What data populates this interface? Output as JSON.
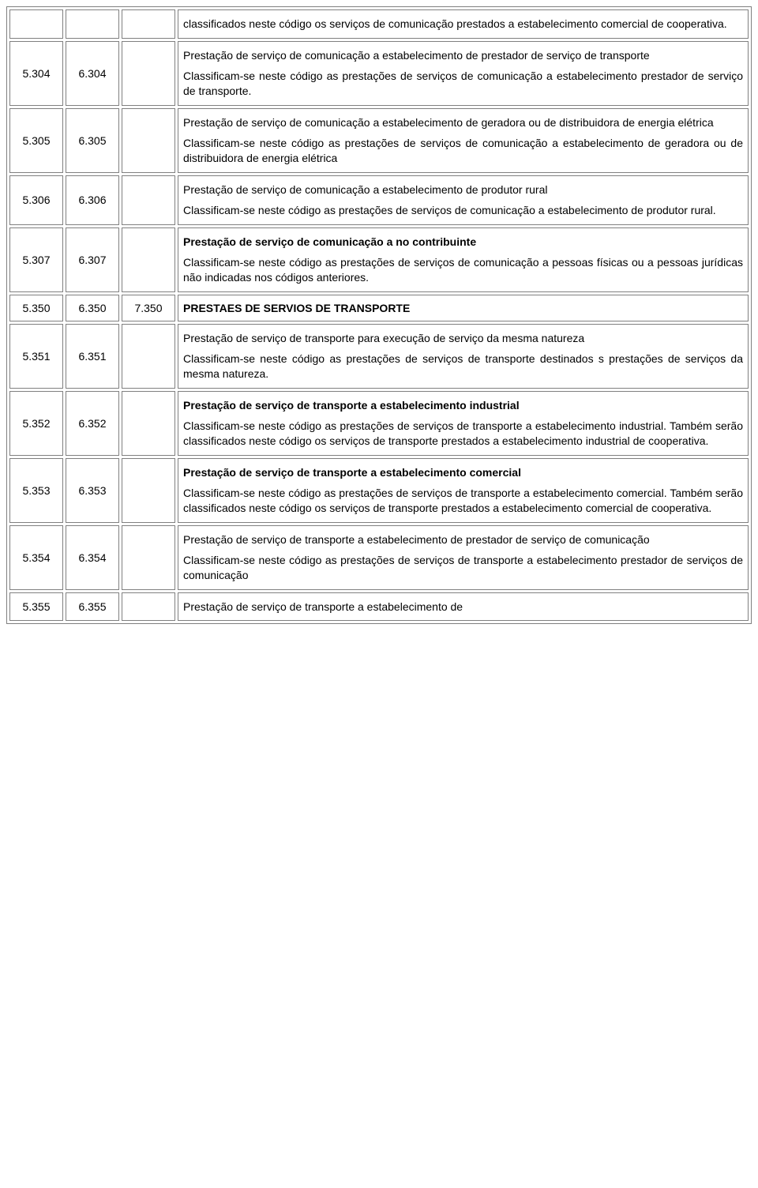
{
  "rows": [
    {
      "col1": "",
      "col2": "",
      "col3": "",
      "title": "",
      "titleBold": false,
      "body": "classificados neste código os serviços de comunicação prestados a estabelecimento comercial de cooperativa.",
      "bodyOnly": true
    },
    {
      "col1": "5.304",
      "col2": "6.304",
      "col3": "",
      "title": "Prestação de serviço de comunicação a estabelecimento de prestador de serviço de transporte",
      "titleBold": false,
      "body": "Classificam-se neste código as prestações de serviços de comunicação a estabelecimento prestador de serviço de transporte."
    },
    {
      "col1": "5.305",
      "col2": "6.305",
      "col3": "",
      "title": "Prestação de serviço de comunicação a estabelecimento de geradora ou de distribuidora de energia elétrica",
      "titleBold": false,
      "body": "Classificam-se neste código as prestações de serviços de comunicação a estabelecimento de geradora ou de distribuidora de energia elétrica"
    },
    {
      "col1": "5.306",
      "col2": "6.306",
      "col3": "",
      "title": "Prestação de serviço de comunicação a estabelecimento de produtor rural",
      "titleBold": false,
      "body": "Classificam-se neste código as prestações de serviços de comunicação a estabelecimento de produtor rural."
    },
    {
      "col1": "5.307",
      "col2": "6.307",
      "col3": "",
      "title": "Prestação de serviço de comunicação a no contribuinte",
      "titleBold": true,
      "body": "Classificam-se neste código as prestações de serviços de comunicação a pessoas físicas ou a pessoas jurídicas não indicadas nos códigos anteriores."
    },
    {
      "col1": "5.350",
      "col2": "6.350",
      "col3": "7.350",
      "title": "PRESTAES DE SERVIOS DE TRANSPORTE",
      "titleBold": true,
      "body": "",
      "titleOnly": true
    },
    {
      "col1": "5.351",
      "col2": "6.351",
      "col3": "",
      "title": "Prestação de serviço de transporte para execução de serviço da mesma natureza",
      "titleBold": false,
      "body": "Classificam-se neste código as prestações de serviços de transporte destinados s prestações de serviços da mesma natureza."
    },
    {
      "col1": "5.352",
      "col2": "6.352",
      "col3": "",
      "title": "Prestação de serviço de transporte a estabelecimento industrial",
      "titleBold": true,
      "body": "Classificam-se neste código as prestações de serviços de transporte a estabelecimento industrial. Também serão classificados neste código os serviços de transporte prestados a estabelecimento industrial de cooperativa."
    },
    {
      "col1": "5.353",
      "col2": "6.353",
      "col3": "",
      "title": "Prestação de serviço de transporte a estabelecimento comercial",
      "titleBold": true,
      "body": "Classificam-se neste código as prestações de serviços de transporte a estabelecimento comercial. Também serão classificados neste código os serviços de transporte prestados a estabelecimento comercial de cooperativa."
    },
    {
      "col1": "5.354",
      "col2": "6.354",
      "col3": "",
      "title": "Prestação de serviço de transporte a estabelecimento de prestador de serviço de comunicação",
      "titleBold": false,
      "body": "Classificam-se neste código as prestações de serviços de transporte a estabelecimento prestador de serviços de comunicação"
    },
    {
      "col1": "5.355",
      "col2": "6.355",
      "col3": "",
      "title": "Prestação de serviço de transporte a estabelecimento de",
      "titleBold": false,
      "body": "",
      "titleOnly": true,
      "titleNormalSingle": true
    }
  ]
}
